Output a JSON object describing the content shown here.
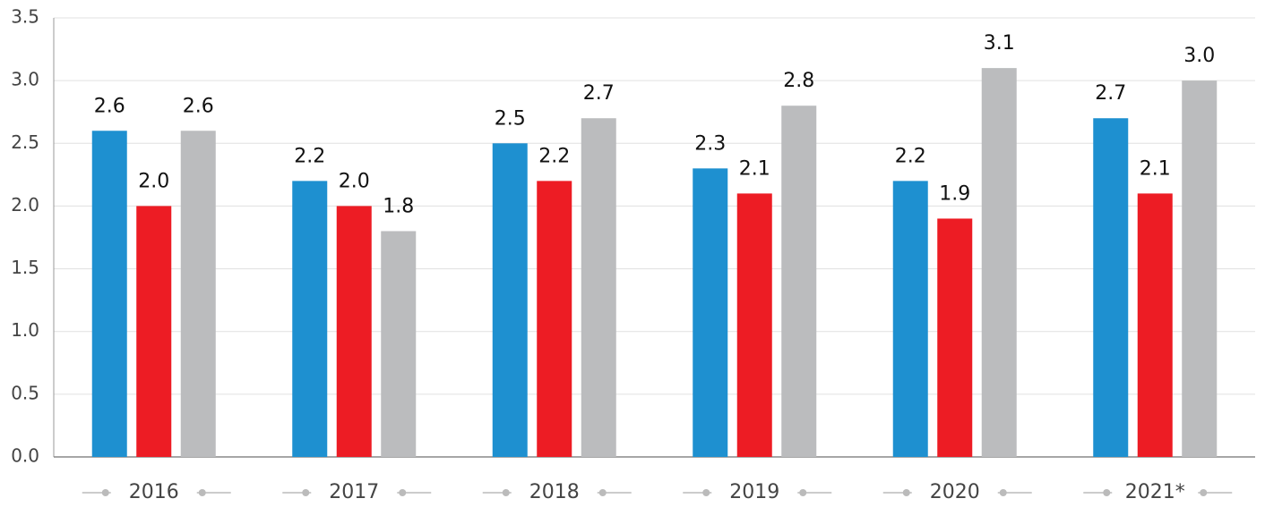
{
  "chart_data": {
    "type": "bar",
    "categories": [
      "2016",
      "2017",
      "2018",
      "2019",
      "2020",
      "2021*"
    ],
    "series": [
      {
        "color": "#1e90d0",
        "values": [
          2.6,
          2.2,
          2.5,
          2.3,
          2.2,
          2.7
        ],
        "value_labels": [
          "2.6",
          "2.2",
          "2.5",
          "2.3",
          "2.2",
          "2.7"
        ]
      },
      {
        "color": "#ed1c24",
        "values": [
          2.0,
          2.0,
          2.2,
          2.1,
          1.9,
          2.1
        ],
        "value_labels": [
          "2.0",
          "2.0",
          "2.2",
          "2.1",
          "1.9",
          "2.1"
        ]
      },
      {
        "color": "#bbbcbe",
        "values": [
          2.6,
          1.8,
          2.7,
          2.8,
          3.1,
          3.0
        ],
        "value_labels": [
          "2.6",
          "1.8",
          "2.7",
          "2.8",
          "3.1",
          "3.0"
        ]
      }
    ],
    "ylim": [
      0,
      3.5
    ],
    "yticks": [
      {
        "value": 0,
        "label": "0.0"
      },
      0.5,
      {
        "value": 1,
        "label": "1.0"
      },
      1.5,
      {
        "value": 2,
        "label": "2.0"
      },
      2.5,
      {
        "value": 3,
        "label": "3.0"
      },
      3.5
    ],
    "grid": true
  }
}
